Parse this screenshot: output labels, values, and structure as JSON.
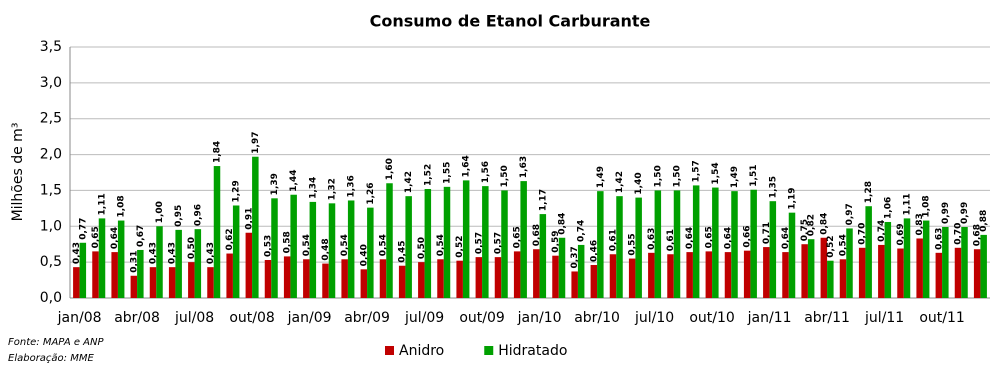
{
  "chart_data": {
    "type": "bar",
    "title": "Consumo de Etanol Carburante",
    "y_label": "Milhões de m³",
    "categories": [
      "jan/08",
      null,
      null,
      "abr/08",
      null,
      null,
      "jul/08",
      null,
      null,
      "out/08",
      null,
      null,
      "jan/09",
      null,
      null,
      "abr/09",
      null,
      null,
      "jul/09",
      null,
      null,
      "out/09",
      null,
      null,
      "jan/10",
      null,
      null,
      "abr/10",
      null,
      null,
      "jul/10",
      null,
      null,
      "out/10",
      null,
      null,
      "jan/11",
      null,
      null,
      "abr/11",
      null,
      null,
      "jul/11",
      null,
      null,
      "out/11",
      null,
      null
    ],
    "series": [
      {
        "name": "Anidro",
        "color": "#c00000",
        "values": [
          0.43,
          0.65,
          0.64,
          0.31,
          0.43,
          0.43,
          0.5,
          0.43,
          0.62,
          0.91,
          0.53,
          0.58,
          0.54,
          0.48,
          0.54,
          0.4,
          0.54,
          0.45,
          0.5,
          0.54,
          0.52,
          0.57,
          0.57,
          0.65,
          0.68,
          0.59,
          0.37,
          0.46,
          0.61,
          0.55,
          0.63,
          0.61,
          0.64,
          0.65,
          0.64,
          0.66,
          0.71,
          0.64,
          0.75,
          0.84,
          0.54,
          0.7,
          0.74,
          0.69,
          0.83,
          0.63,
          0.7,
          0.68
        ],
        "value_labels": [
          "0,43",
          "0,65",
          "0,64",
          "0,31",
          "0,43",
          "0,43",
          "0,50",
          "0,43",
          "0,62",
          "0,91",
          "0,53",
          "0,58",
          "0,54",
          "0,48",
          "0,54",
          "0,40",
          "0,54",
          "0,45",
          "0,50",
          "0,54",
          "0,52",
          "0,57",
          "0,57",
          "0,65",
          "0,68",
          "0,59",
          "0,37",
          "0,46",
          "0,61",
          "0,55",
          "0,63",
          "0,61",
          "0,64",
          "0,65",
          "0,64",
          "0,66",
          "0,71",
          "0,64",
          "0,75",
          "0,84",
          "0,54",
          "0,70",
          "0,74",
          "0,69",
          "0,83",
          "0,63",
          "0,70",
          "0,68"
        ]
      },
      {
        "name": "Hidratado",
        "color": "#00a000",
        "values": [
          0.77,
          1.11,
          1.08,
          0.67,
          1.0,
          0.95,
          0.96,
          1.84,
          1.29,
          1.97,
          1.39,
          1.44,
          1.34,
          1.32,
          1.36,
          1.26,
          1.6,
          1.42,
          1.52,
          1.55,
          1.64,
          1.56,
          1.5,
          1.63,
          1.17,
          0.84,
          0.74,
          1.49,
          1.42,
          1.4,
          1.5,
          1.5,
          1.57,
          1.54,
          1.49,
          1.51,
          1.35,
          1.19,
          0.82,
          0.52,
          0.97,
          1.28,
          1.06,
          1.11,
          1.08,
          0.99,
          0.99,
          0.88
        ],
        "value_labels": [
          "0,77",
          "1,11",
          "1,08",
          "0,67",
          "1,00",
          "0,95",
          "0,96",
          "1,84",
          "1,29",
          "1,97",
          "1,39",
          "1,44",
          "1,34",
          "1,32",
          "1,36",
          "1,26",
          "1,60",
          "1,42",
          "1,52",
          "1,55",
          "1,64",
          "1,56",
          "1,50",
          "1,63",
          "1,17",
          "0,84",
          "0,74",
          "1,49",
          "1,42",
          "1,40",
          "1,50",
          "1,50",
          "1,57",
          "1,54",
          "1,49",
          "1,51",
          "1,35",
          "1,19",
          "0,82",
          "0,52",
          "0,97",
          "1,28",
          "1,06",
          "1,11",
          "1,08",
          "0,99",
          "0,99",
          "0,88"
        ]
      }
    ],
    "ylim": [
      0,
      3.5
    ],
    "yticks": [
      {
        "value": 0,
        "label": "0,0"
      },
      {
        "value": 0.5,
        "label": "0,5"
      },
      {
        "value": 1,
        "label": "1,0"
      },
      {
        "value": 1.5,
        "label": "1,5"
      },
      {
        "value": 2,
        "label": "2,0"
      },
      {
        "value": 2.5,
        "label": "2,5"
      },
      {
        "value": 3,
        "label": "3,0"
      },
      {
        "value": 3.5,
        "label": "3,5"
      }
    ],
    "grid": true,
    "legend": "bottom",
    "source": [
      "Fonte: MAPA e ANP",
      "Elaboração: MME"
    ]
  }
}
